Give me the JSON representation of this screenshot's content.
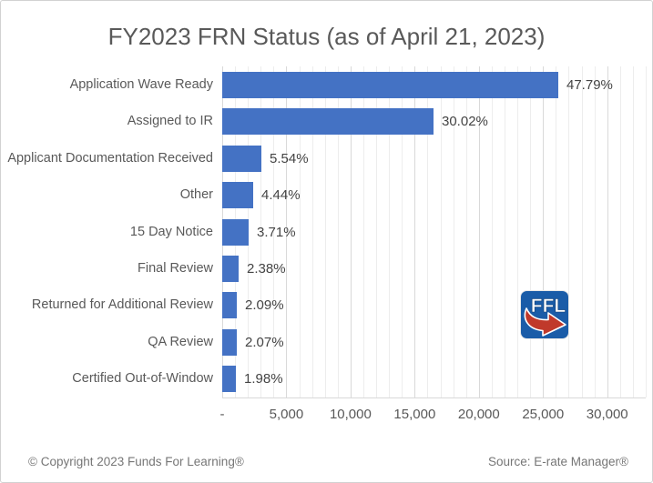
{
  "title": "FY2023 FRN Status (as of April 21, 2023)",
  "footer": {
    "copyright": "© Copyright 2023 Funds For Learning®",
    "source": "Source: E-rate Manager®"
  },
  "logo": {
    "text": "FFL"
  },
  "colors": {
    "bar": "#4472C4",
    "grid_minor": "#ededed",
    "grid_major": "#d9d9d9",
    "title_text": "#595959",
    "label_text": "#595959",
    "value_text": "#444444",
    "footer_text": "#767676",
    "logo_blue": "#1A5CA8",
    "logo_red": "#C0392B"
  },
  "chart_data": {
    "type": "bar",
    "orientation": "horizontal",
    "title": "FY2023 FRN Status (as of April 21, 2023)",
    "categories": [
      "Application Wave Ready",
      "Assigned to IR",
      "Applicant Documentation Received",
      "Other",
      "15 Day Notice",
      "Final Review",
      "Returned for Additional Review",
      "QA Review",
      "Certified Out-of-Window"
    ],
    "percent_labels": [
      "47.79%",
      "30.02%",
      "5.54%",
      "4.44%",
      "3.71%",
      "2.38%",
      "2.09%",
      "2.07%",
      "1.98%"
    ],
    "values": [
      26200,
      16460,
      3040,
      2430,
      2030,
      1300,
      1150,
      1130,
      1090
    ],
    "xlim": [
      0,
      33000
    ],
    "x_ticks": [
      {
        "value": 0,
        "label": "-"
      },
      {
        "value": 5000,
        "label": "5,000"
      },
      {
        "value": 10000,
        "label": "10,000"
      },
      {
        "value": 15000,
        "label": "15,000"
      },
      {
        "value": 20000,
        "label": "20,000"
      },
      {
        "value": 25000,
        "label": "25,000"
      },
      {
        "value": 30000,
        "label": "30,000"
      }
    ],
    "grid": {
      "minor_step": 1000,
      "major_step": 5000,
      "vertical": true
    },
    "legend": null,
    "xlabel": "",
    "ylabel": ""
  }
}
